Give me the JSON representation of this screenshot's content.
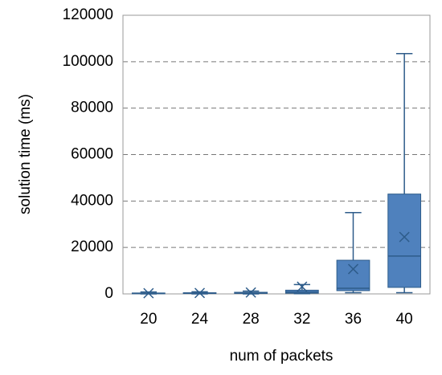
{
  "chart_data": {
    "type": "box",
    "xlabel": "num of packets",
    "ylabel": "solution time (ms)",
    "categories": [
      "20",
      "24",
      "28",
      "32",
      "36",
      "40"
    ],
    "boxes": [
      {
        "min": 0,
        "q1": 100,
        "median": 200,
        "q3": 400,
        "max": 800,
        "mean": 300
      },
      {
        "min": 0,
        "q1": 150,
        "median": 300,
        "q3": 500,
        "max": 900,
        "mean": 400
      },
      {
        "min": 0,
        "q1": 200,
        "median": 400,
        "q3": 700,
        "max": 1200,
        "mean": 600
      },
      {
        "min": 100,
        "q1": 300,
        "median": 800,
        "q3": 1600,
        "max": 4000,
        "mean": 3100
      },
      {
        "min": 500,
        "q1": 1400,
        "median": 2400,
        "q3": 14500,
        "max": 35000,
        "mean": 10700
      },
      {
        "min": 500,
        "q1": 2800,
        "median": 16300,
        "q3": 43000,
        "max": 103500,
        "mean": 24500
      }
    ],
    "color": "#4f81bd",
    "ylim": [
      0,
      120000
    ],
    "yticks": [
      0,
      20000,
      40000,
      60000,
      80000,
      100000,
      120000
    ],
    "grid": true
  }
}
